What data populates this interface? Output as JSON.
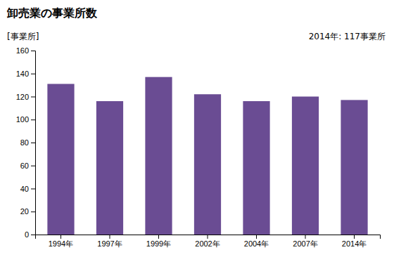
{
  "chart_data": {
    "type": "bar",
    "title": "卸売業の事業所数",
    "ylabel": "[事業所]",
    "annotation": "2014年: 117事業所",
    "categories": [
      "1994年",
      "1997年",
      "1999年",
      "2002年",
      "2004年",
      "2007年",
      "2014年"
    ],
    "values": [
      131,
      116,
      137,
      122,
      116,
      120,
      117
    ],
    "color": "#6A4C93",
    "ylim": [
      0,
      160
    ],
    "yticks": [
      0,
      20,
      40,
      60,
      80,
      100,
      120,
      140,
      160
    ],
    "grid": false
  }
}
